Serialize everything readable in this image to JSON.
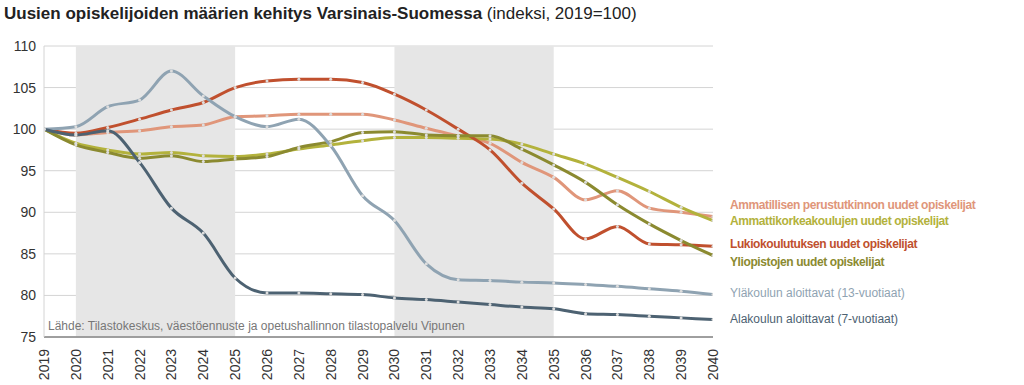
{
  "chart_data": {
    "type": "line",
    "title": "Uusien opiskelijoiden määrien kehitys Varsinais-Suomessa",
    "subtitle": "(indeksi, 2019=100)",
    "source": "Lähde: Tilastokeskus, väestöennuste ja opetushallinnon tilastopalvelu Vipunen",
    "x": [
      2019,
      2020,
      2021,
      2022,
      2023,
      2024,
      2025,
      2026,
      2027,
      2028,
      2029,
      2030,
      2031,
      2032,
      2033,
      2034,
      2035,
      2036,
      2037,
      2038,
      2039,
      2040
    ],
    "xlim": [
      2019,
      2040
    ],
    "xticks": [
      2019,
      2020,
      2021,
      2022,
      2023,
      2024,
      2025,
      2026,
      2027,
      2028,
      2029,
      2030,
      2031,
      2032,
      2033,
      2034,
      2035,
      2036,
      2037,
      2038,
      2039,
      2040
    ],
    "ylim": [
      75,
      110
    ],
    "yticks": [
      75,
      80,
      85,
      90,
      95,
      100,
      105,
      110
    ],
    "grid": true,
    "marker": "circle",
    "shaded_ranges": [
      [
        2020,
        2025
      ],
      [
        2030,
        2035
      ]
    ],
    "series": [
      {
        "name": "Ammatillisen perustutkinnon uudet opiskelijat",
        "color": "#e0967a",
        "values": [
          100,
          99.3,
          99.6,
          99.8,
          100.3,
          100.5,
          101.5,
          101.6,
          101.8,
          101.8,
          101.8,
          101.1,
          100.1,
          99.2,
          98.3,
          96,
          94.2,
          91.5,
          92.6,
          90.5,
          90,
          89.5
        ]
      },
      {
        "name": "Ammattikorkeakoulujen uudet opiskelijat",
        "color": "#b3b23c",
        "values": [
          100,
          98.3,
          97.5,
          97,
          97.2,
          96.8,
          96.7,
          97,
          97.6,
          98.1,
          98.6,
          99,
          99,
          98.9,
          98.8,
          98.2,
          97,
          95.8,
          94.2,
          92.5,
          90.6,
          89
        ]
      },
      {
        "name": "Lukiokoulutuksen uudet opiskelijat",
        "color": "#c0502e",
        "values": [
          100,
          99.5,
          100.2,
          101.2,
          102.3,
          103.2,
          105,
          105.8,
          106,
          106,
          105.6,
          104.2,
          102.3,
          100,
          97.5,
          93.5,
          90.4,
          86.8,
          88.3,
          86.2,
          86.1,
          85.9
        ]
      },
      {
        "name": "Yliopistojen uudet opiskelijat",
        "color": "#8b8a30",
        "values": [
          100,
          98.1,
          97.2,
          96.5,
          96.8,
          96.1,
          96.4,
          96.7,
          97.8,
          98.5,
          99.6,
          99.7,
          99.3,
          99.2,
          99.2,
          97.6,
          95.7,
          93.6,
          90.9,
          88.6,
          86.6,
          84.8
        ]
      },
      {
        "name": "Yläkoulun aloittavat (13-vuotiaat)",
        "color": "#8fa3b2",
        "values": [
          100,
          100.3,
          102.7,
          103.5,
          107,
          104,
          101.5,
          100.3,
          101.2,
          98,
          92,
          89,
          83.8,
          81.9,
          81.8,
          81.6,
          81.5,
          81.3,
          81.1,
          80.8,
          80.5,
          80.1
        ]
      },
      {
        "name": "Alakoulun aloittavat (7-vuotiaat)",
        "color": "#4d6272",
        "values": [
          100,
          99.3,
          99.8,
          96,
          90.5,
          87.5,
          82.1,
          80.3,
          80.3,
          80.2,
          80.1,
          79.7,
          79.5,
          79.2,
          78.9,
          78.6,
          78.4,
          77.8,
          77.7,
          77.5,
          77.3,
          77.1
        ]
      }
    ]
  }
}
